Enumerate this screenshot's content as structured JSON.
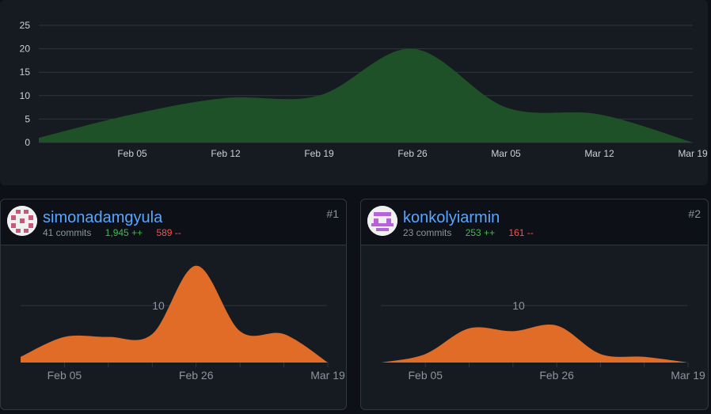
{
  "colors": {
    "background": "#0d1117",
    "panel": "#161b22",
    "overall_area": "#1f5128",
    "contributor_area": "#e06c27",
    "link": "#58a6ff",
    "additions": "#3fb950",
    "deletions": "#f85149"
  },
  "chart_data": [
    {
      "type": "area",
      "x_ticks": [
        "Feb 05",
        "Feb 12",
        "Feb 19",
        "Feb 26",
        "Mar 05",
        "Mar 12",
        "Mar 19"
      ],
      "y_ticks": [
        "0",
        "5",
        "10",
        "15",
        "20",
        "25"
      ],
      "ylim": [
        0,
        25
      ],
      "grid": true,
      "x": [
        "Jan 29",
        "Feb 05",
        "Feb 12",
        "Feb 19",
        "Feb 26",
        "Mar 05",
        "Mar 12",
        "Mar 19"
      ],
      "values": [
        1,
        6,
        9.5,
        10,
        20,
        7.5,
        6,
        0
      ]
    },
    {
      "type": "area",
      "x_ticks": [
        "Feb 05",
        "Feb 26",
        "Mar 19"
      ],
      "y_ticks": [
        "10"
      ],
      "ylim": [
        0,
        12
      ],
      "x": [
        "Jan 29",
        "Feb 05",
        "Feb 12",
        "Feb 19",
        "Feb 26",
        "Mar 05",
        "Mar 12",
        "Mar 19"
      ],
      "values": [
        1,
        4.5,
        4.5,
        5,
        17,
        5.5,
        5,
        0
      ]
    },
    {
      "type": "area",
      "x_ticks": [
        "Feb 05",
        "Feb 26",
        "Mar 19"
      ],
      "y_ticks": [
        "10"
      ],
      "ylim": [
        0,
        12
      ],
      "x": [
        "Jan 29",
        "Feb 05",
        "Feb 12",
        "Feb 19",
        "Feb 26",
        "Mar 05",
        "Mar 12",
        "Mar 19"
      ],
      "values": [
        0,
        1.5,
        6,
        5.5,
        6.5,
        1.5,
        1,
        0
      ]
    }
  ],
  "contributors": [
    {
      "rank": "#1",
      "username": "simonadamgyula",
      "commits": "41 commits",
      "additions": "1,945 ++",
      "deletions": "589 --",
      "avatar_color": "#c9577a"
    },
    {
      "rank": "#2",
      "username": "konkolyiarmin",
      "commits": "23 commits",
      "additions": "253 ++",
      "deletions": "161 --",
      "avatar_color": "#b464d8"
    }
  ]
}
